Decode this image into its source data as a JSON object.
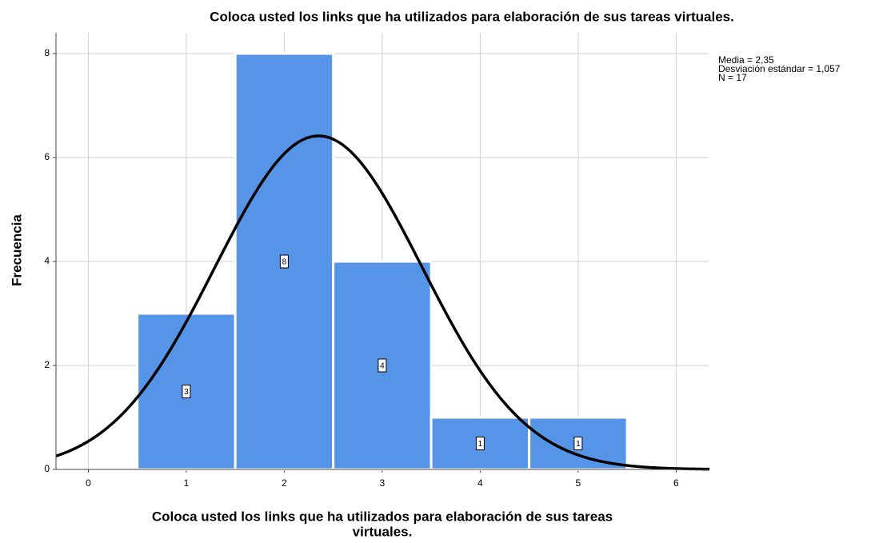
{
  "chart_data": {
    "type": "histogram",
    "title": "Coloca usted los links que ha utilizados para elaboración de sus tareas virtuales.",
    "xlabel": [
      "Coloca usted los links que ha utilizados para elaboración de sus tareas",
      "virtuales."
    ],
    "ylabel": "Frecuencia",
    "bins": [
      0.5,
      1.5,
      2.5,
      3.5,
      4.5,
      5.5
    ],
    "values": [
      3,
      8,
      4,
      1,
      1
    ],
    "color": "#5594e6",
    "curve_color": "#000000",
    "stats": [
      {
        "value": 2.35,
        "label": "Media = 2,35"
      },
      {
        "value": 1.057,
        "label": "Desviación estándar = 1,057"
      },
      {
        "value": 17,
        "label": "N = 17"
      }
    ],
    "xlim": [
      -0.33,
      6.34
    ],
    "xticks": [
      0,
      1,
      2,
      3,
      4,
      5,
      6
    ],
    "ylim": [
      0,
      8.4
    ],
    "yticks": [
      0,
      2,
      4,
      6,
      8
    ],
    "grid": true
  }
}
